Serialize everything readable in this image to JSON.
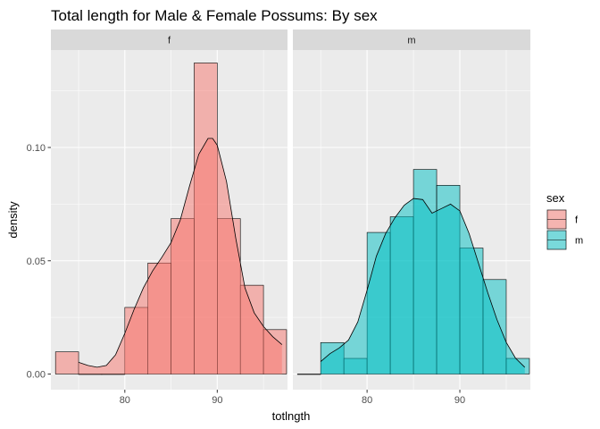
{
  "chart_data": {
    "type": "bar",
    "title": "Total length for Male & Female Possums: By sex",
    "xlabel": "totlngth",
    "ylabel": "density",
    "xlim": [
      72,
      97.6
    ],
    "ylim": [
      -0.0069,
      0.143
    ],
    "x_ticks": [
      80,
      90
    ],
    "x_tick_labels": [
      "80",
      "90"
    ],
    "y_ticks": [
      0,
      0.05,
      0.1
    ],
    "y_tick_labels": [
      "0.00",
      "0.05",
      "0.10"
    ],
    "grid": true,
    "facets": [
      {
        "label": "f",
        "fill": "#F8766D",
        "bins": [
          {
            "x0": 72.5,
            "x1": 75,
            "density": 0.0098
          },
          {
            "x0": 75,
            "x1": 77.5,
            "density": 0
          },
          {
            "x0": 77.5,
            "x1": 80,
            "density": 0
          },
          {
            "x0": 80,
            "x1": 82.5,
            "density": 0.0294
          },
          {
            "x0": 82.5,
            "x1": 85,
            "density": 0.049
          },
          {
            "x0": 85,
            "x1": 87.5,
            "density": 0.0686
          },
          {
            "x0": 87.5,
            "x1": 90,
            "density": 0.1373
          },
          {
            "x0": 90,
            "x1": 92.5,
            "density": 0.0686
          },
          {
            "x0": 92.5,
            "x1": 95,
            "density": 0.0392
          },
          {
            "x0": 95,
            "x1": 97.5,
            "density": 0.0196
          }
        ],
        "density_curve": {
          "x": [
            75,
            76,
            77,
            78,
            79,
            80,
            81,
            82,
            83,
            84,
            85,
            86,
            87,
            88,
            89,
            89.5,
            90,
            91,
            92,
            93,
            94,
            95,
            96,
            97
          ],
          "y": [
            0.0052,
            0.0038,
            0.003,
            0.0038,
            0.0085,
            0.018,
            0.0285,
            0.038,
            0.0455,
            0.0515,
            0.058,
            0.068,
            0.083,
            0.097,
            0.104,
            0.104,
            0.101,
            0.085,
            0.06,
            0.038,
            0.027,
            0.021,
            0.0165,
            0.013
          ]
        }
      },
      {
        "label": "m",
        "fill": "#00BFC4",
        "bins": [
          {
            "x0": 72.5,
            "x1": 75,
            "density": 0
          },
          {
            "x0": 75,
            "x1": 77.5,
            "density": 0.0139
          },
          {
            "x0": 77.5,
            "x1": 80,
            "density": 0.0069
          },
          {
            "x0": 80,
            "x1": 82.5,
            "density": 0.0625
          },
          {
            "x0": 82.5,
            "x1": 85,
            "density": 0.0694
          },
          {
            "x0": 85,
            "x1": 87.5,
            "density": 0.0903
          },
          {
            "x0": 87.5,
            "x1": 90,
            "density": 0.0833
          },
          {
            "x0": 90,
            "x1": 92.5,
            "density": 0.0556
          },
          {
            "x0": 92.5,
            "x1": 95,
            "density": 0.0417
          },
          {
            "x0": 95,
            "x1": 97.5,
            "density": 0.0069
          }
        ],
        "density_curve": {
          "x": [
            75,
            76,
            77,
            78,
            79,
            80,
            81,
            82,
            83,
            84,
            85,
            86,
            87,
            88,
            89,
            90,
            91,
            92,
            93,
            94,
            95,
            96,
            97
          ],
          "y": [
            0.0055,
            0.009,
            0.0115,
            0.015,
            0.023,
            0.037,
            0.052,
            0.062,
            0.069,
            0.0745,
            0.0775,
            0.077,
            0.071,
            0.073,
            0.075,
            0.072,
            0.062,
            0.049,
            0.036,
            0.024,
            0.014,
            0.007,
            0.003
          ]
        }
      }
    ],
    "legend": {
      "title": "sex",
      "position": "right",
      "entries": [
        {
          "label": "f",
          "color": "#F8766D"
        },
        {
          "label": "m",
          "color": "#00BFC4"
        }
      ]
    }
  }
}
